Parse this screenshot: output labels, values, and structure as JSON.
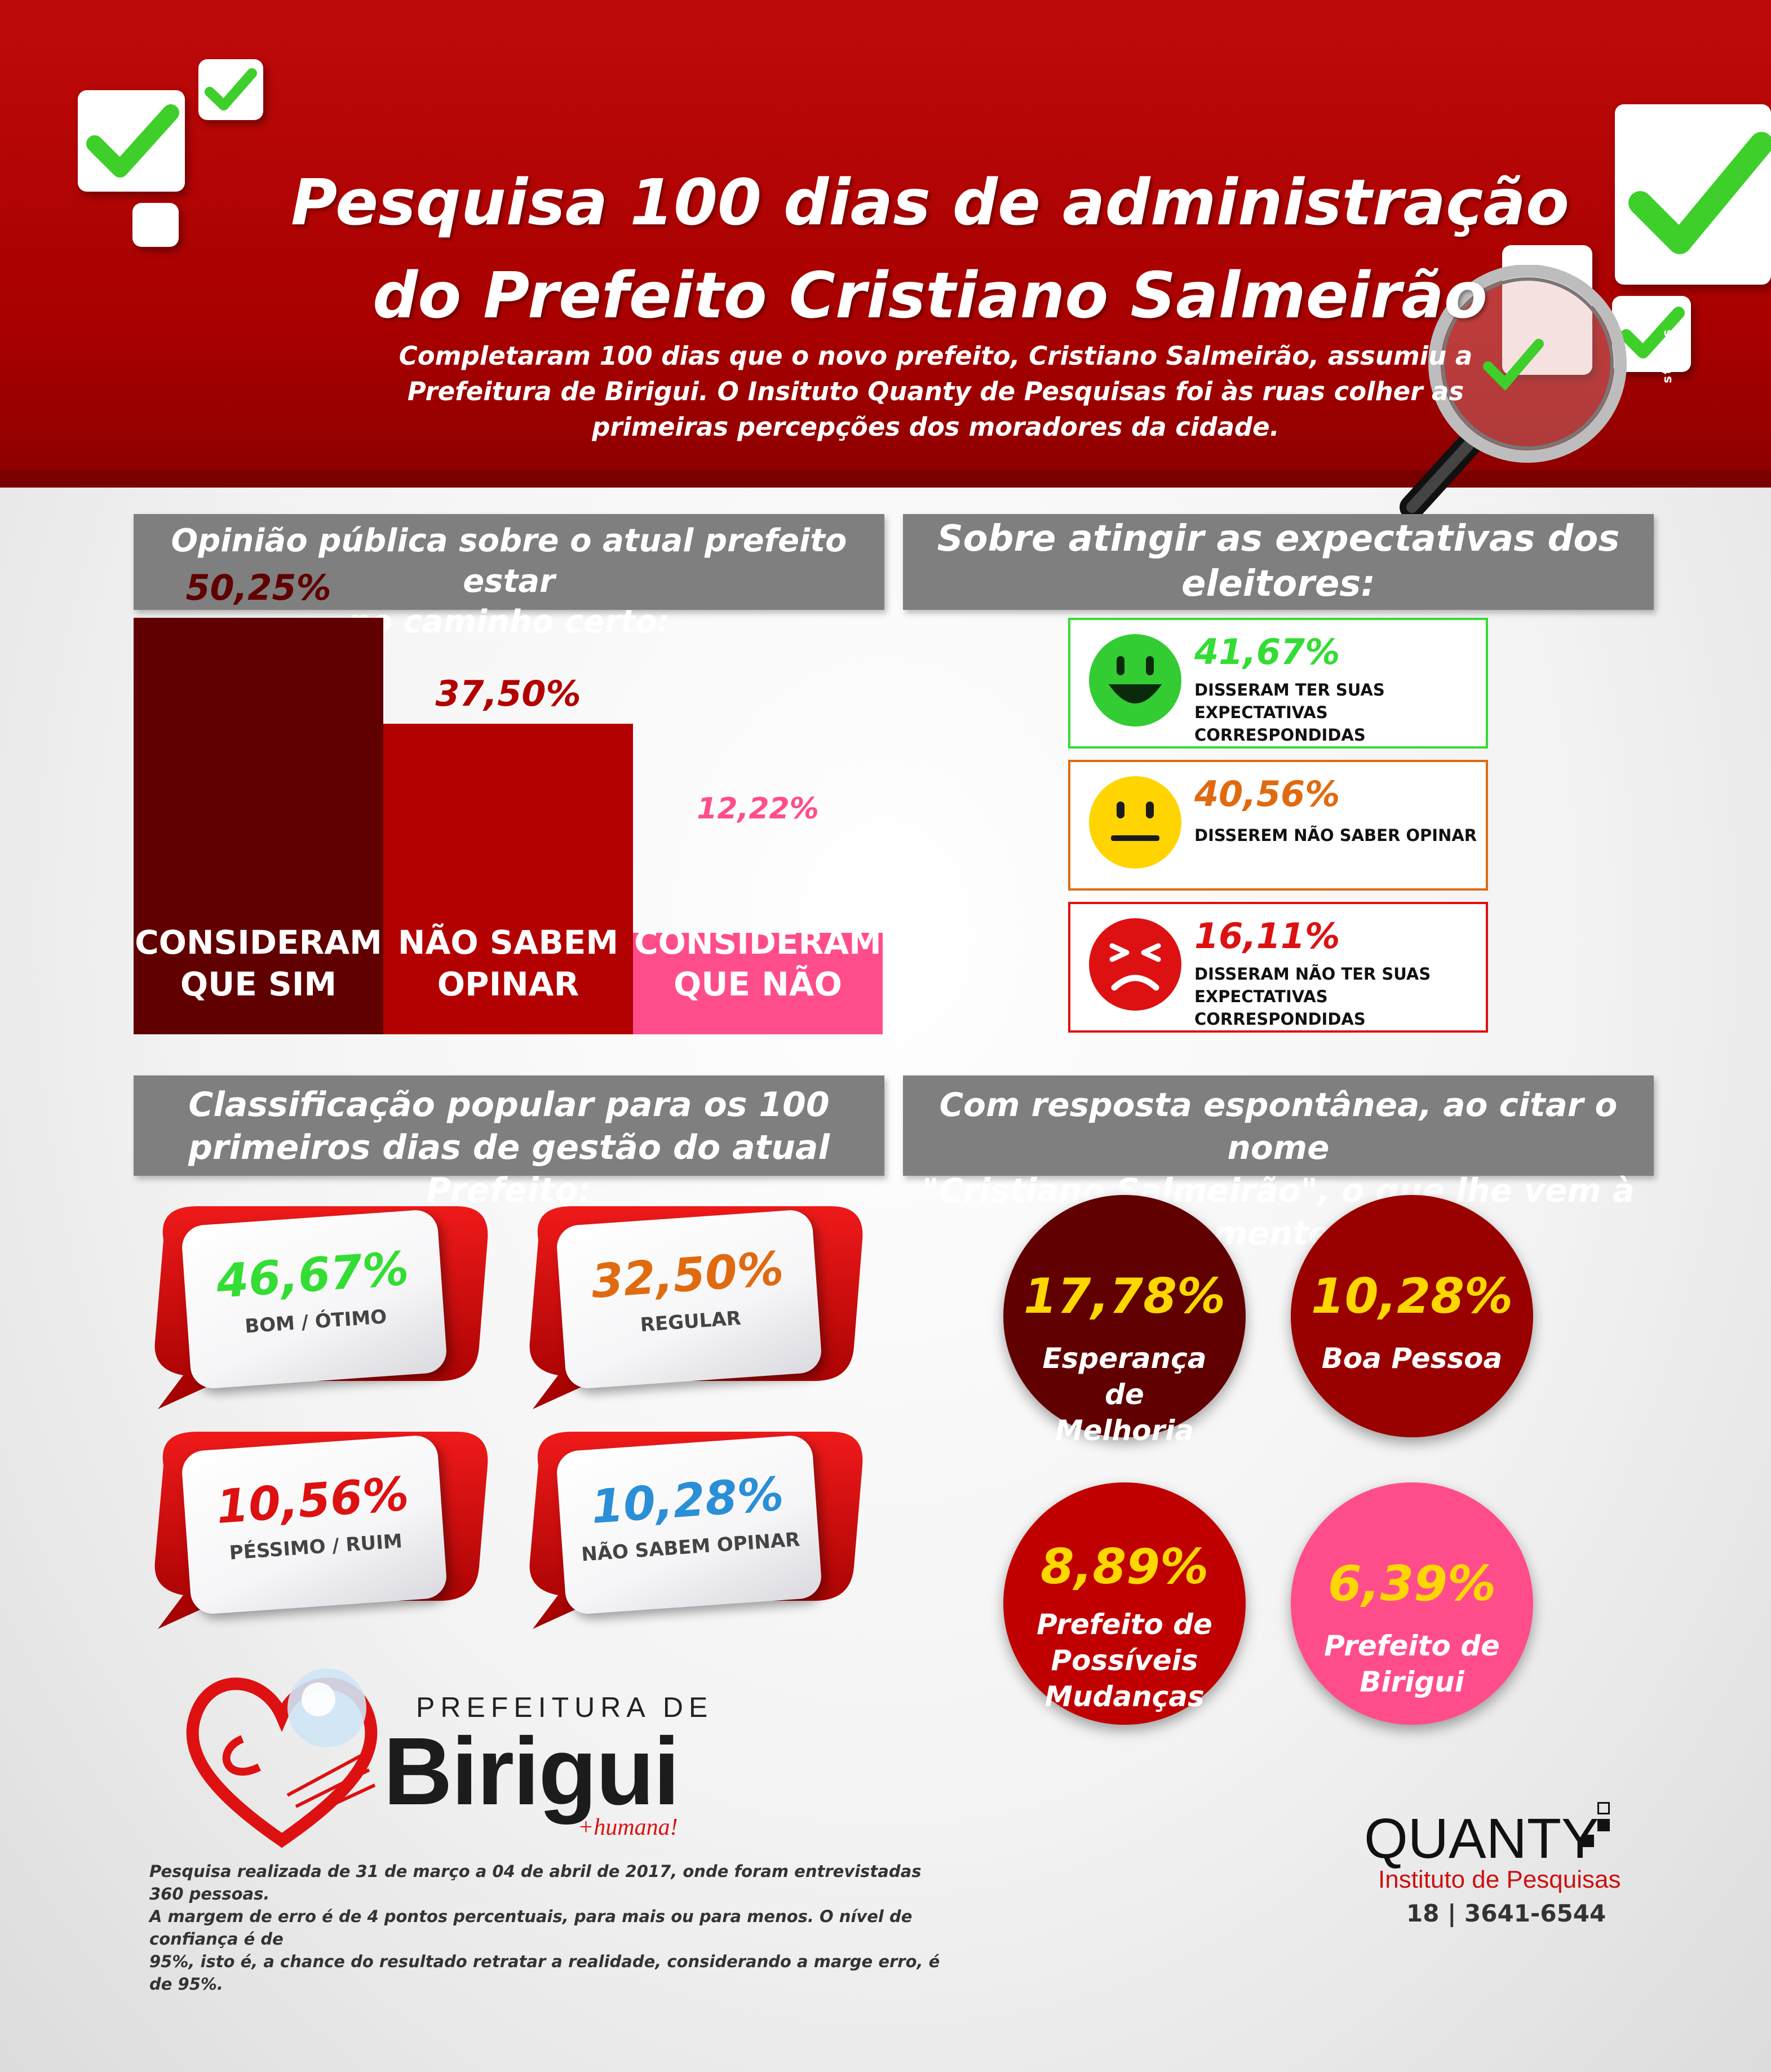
{
  "header": {
    "title_line1": "Pesquisa 100 dias de administração",
    "title_line2": "do Prefeito Cristiano Salmeirão",
    "intro_line1": "Completaram 100 dias que o novo prefeito, Cristiano Salmeirão, assumiu a",
    "intro_line2": "Prefeitura de Birigui. O Insituto Quanty de Pesquisas foi às ruas colher as",
    "intro_line3": "primeiras percepções dos moradores da cidade.",
    "signature": "st!llus"
  },
  "colors": {
    "header_red": "#b30000",
    "dark_maroon": "#600000",
    "mid_red": "#b30000",
    "pink": "#ff4d8c",
    "green": "#33dd33",
    "orange": "#e06a10",
    "red": "#dd1111",
    "blue": "#2a8fd6",
    "gold": "#ffd700"
  },
  "panels": {
    "opinion_title_l1": "Opinião pública sobre o atual prefeito estar",
    "opinion_title_l2": "no caminho certo:",
    "expect_title_l1": "Sobre atingir as expectativas dos",
    "expect_title_l2": "eleitores:",
    "class_title_l1": "Classificação popular para os 100",
    "class_title_l2": "primeiros dias de gestão do atual Prefeito:",
    "spont_title_l1": "Com resposta espontânea, ao citar o  nome",
    "spont_title_l2": "\"Cristiano Salmeirão\", o que lhe vem à mente:"
  },
  "chart_data": [
    {
      "type": "bar",
      "categories": [
        "CONSIDERAM QUE SIM",
        "NÃO SABEM OPINAR",
        "CONSIDERAM QUE NÃO"
      ],
      "category_lines": [
        [
          "CONSIDERAM",
          "QUE SIM"
        ],
        [
          "NÃO SABEM",
          "OPINAR"
        ],
        [
          "CONSIDERAM",
          "QUE NÃO"
        ]
      ],
      "values": [
        50.25,
        37.5,
        12.22
      ],
      "value_labels": [
        "50,25%",
        "37,50%",
        "12,22%"
      ],
      "colors": [
        "#600000",
        "#b30000",
        "#ff4d8c"
      ],
      "title": "Opinião pública sobre o atual prefeito estar no caminho certo:"
    },
    {
      "type": "table",
      "title": "Sobre atingir as expectativas dos eleitores:",
      "rows": [
        {
          "face": "happy-face-icon",
          "value": 41.67,
          "label": "41,67%",
          "text_l1": "DISSERAM TER SUAS",
          "text_l2": "EXPECTATIVAS CORRESPONDIDAS",
          "color": "#33dd33"
        },
        {
          "face": "neutral-face-icon",
          "value": 40.56,
          "label": "40,56%",
          "text_l1": "DISSEREM NÃO SABER OPINAR",
          "text_l2": "",
          "color": "#e06a10"
        },
        {
          "face": "sad-face-icon",
          "value": 16.11,
          "label": "16,11%",
          "text_l1": "DISSERAM NÃO TER SUAS",
          "text_l2": "EXPECTATIVAS CORRESPONDIDAS",
          "color": "#dd1111"
        }
      ]
    },
    {
      "type": "table",
      "title": "Classificação popular para os 100 primeiros dias de gestão do atual Prefeito:",
      "rows": [
        {
          "value": 46.67,
          "label": "46,67%",
          "category": "BOM / ÓTIMO",
          "color": "#33dd33"
        },
        {
          "value": 32.5,
          "label": "32,50%",
          "category": "REGULAR",
          "color": "#e06a10"
        },
        {
          "value": 10.56,
          "label": "10,56%",
          "category": "PÉSSIMO / RUIM",
          "color": "#dd1111"
        },
        {
          "value": 10.28,
          "label": "10,28%",
          "category": "NÃO SABEM OPINAR",
          "color": "#2a8fd6"
        }
      ]
    },
    {
      "type": "table",
      "title": "Com resposta espontânea, ao citar o  nome \"Cristiano Salmeirão\", o que lhe vem à mente:",
      "rows": [
        {
          "value": 17.78,
          "label": "17,78%",
          "text_l1": "Esperança de",
          "text_l2": "Melhoria",
          "text_l3": "",
          "color": "#600000"
        },
        {
          "value": 10.28,
          "label": "10,28%",
          "text_l1": "Boa Pessoa",
          "text_l2": "",
          "text_l3": "",
          "color": "#990000"
        },
        {
          "value": 8.89,
          "label": "8,89%",
          "text_l1": "Prefeito de",
          "text_l2": "Possíveis",
          "text_l3": "Mudanças",
          "color": "#c00000"
        },
        {
          "value": 6.39,
          "label": "6,39%",
          "text_l1": "Prefeito de",
          "text_l2": "Birigui",
          "text_l3": "",
          "color": "#ff4d8c"
        }
      ]
    }
  ],
  "logos": {
    "birigui_top": "PREFEITURA DE",
    "birigui_name": "Birigui",
    "birigui_tag": "+humana!",
    "quanty_name": "QUANTY",
    "quanty_sub": "Instituto de Pesquisas",
    "quanty_phone": "18 | 3641-6544"
  },
  "footnote": {
    "line1": "Pesquisa realizada de 31 de março a 04 de abril de 2017, onde foram entrevistadas 360 pessoas.",
    "line2": "A margem de erro é de 4 pontos percentuais, para mais ou para menos. O nível de confiança é de",
    "line3": "95%, isto é, a chance do resultado retratar a realidade, considerando a marge erro, é de 95%."
  }
}
